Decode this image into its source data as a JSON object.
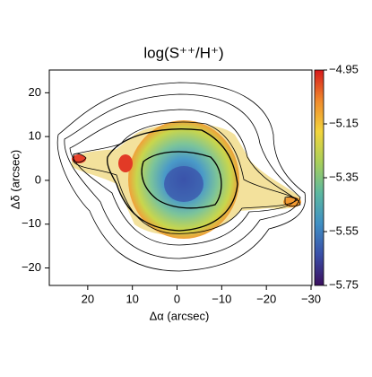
{
  "chart_data": {
    "type": "image",
    "title": "log(S⁺⁺/H⁺)",
    "xlabel": "Δα (arcsec)",
    "ylabel": "Δδ (arcsec)",
    "xlim": [
      28.6,
      -30.2
    ],
    "ylim": [
      -24,
      25.2
    ],
    "xticks": [
      20,
      10,
      0,
      {
        "value": -10,
        "label": "−10"
      },
      {
        "value": -20,
        "label": "−20"
      },
      {
        "value": -30,
        "label": "−30"
      }
    ],
    "yticks": [
      {
        "value": -20,
        "label": "−20"
      },
      {
        "value": -10,
        "label": "−10"
      },
      0,
      10,
      20
    ],
    "clim": [
      -5.75,
      -4.95
    ],
    "cticks": [
      {
        "value": -4.95,
        "label": "−4.95"
      },
      {
        "value": -5.15,
        "label": "−5.15"
      },
      {
        "value": -5.35,
        "label": "−5.35"
      },
      {
        "value": -5.55,
        "label": "−5.55"
      },
      {
        "value": -5.75,
        "label": "−5.75"
      }
    ],
    "colormap": [
      "#3b0f5e",
      "#3a4fa8",
      "#3f8fc4",
      "#5cb8a0",
      "#a8cf5a",
      "#f2d43c",
      "#f08a2c",
      "#d7191c"
    ]
  }
}
